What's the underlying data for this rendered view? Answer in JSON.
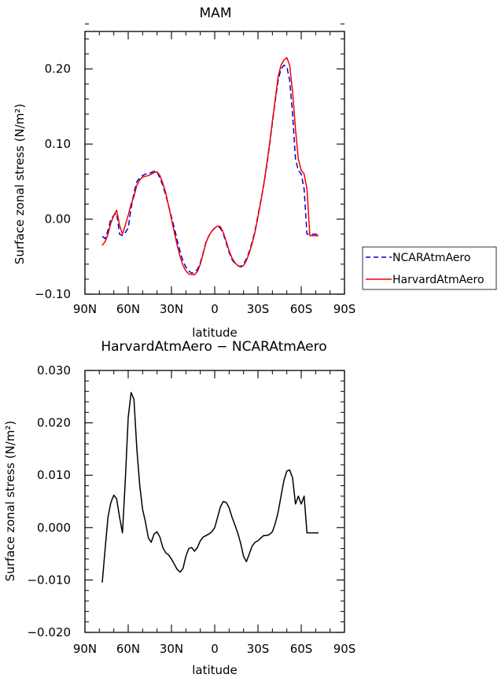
{
  "chart_data": [
    {
      "type": "line",
      "title": "MAM",
      "xlabel": "latitude",
      "ylabel": "Surface zonal stress (N/m²)",
      "xlim": [
        90,
        -90
      ],
      "ylim": [
        -0.1,
        0.25
      ],
      "xticks": [
        {
          "value": 90,
          "label": "90N"
        },
        {
          "value": 60,
          "label": "60N"
        },
        {
          "value": 30,
          "label": "30N"
        },
        {
          "value": 0,
          "label": "0"
        },
        {
          "value": -30,
          "label": "30S"
        },
        {
          "value": -60,
          "label": "60S"
        },
        {
          "value": -90,
          "label": "90S"
        }
      ],
      "yticks": [
        {
          "value": -0.1,
          "label": "−0.10"
        },
        {
          "value": 0.0,
          "label": "0.00"
        },
        {
          "value": 0.1,
          "label": "0.10"
        },
        {
          "value": 0.2,
          "label": "0.20"
        }
      ],
      "legend": {
        "placement": "right-bottom",
        "entries": [
          "NCARAtmAero",
          "HarvardAtmAero"
        ]
      },
      "series": [
        {
          "name": "NCARAtmAero",
          "color": "#0000cc",
          "dash": true,
          "x": [
            78,
            76,
            74,
            72,
            70,
            68,
            66,
            64,
            62,
            60,
            58,
            56,
            54,
            52,
            50,
            48,
            46,
            44,
            42,
            40,
            38,
            36,
            34,
            32,
            30,
            28,
            26,
            24,
            22,
            20,
            18,
            16,
            14,
            12,
            10,
            8,
            6,
            4,
            2,
            0,
            -2,
            -4,
            -6,
            -8,
            -10,
            -12,
            -14,
            -16,
            -18,
            -20,
            -22,
            -24,
            -26,
            -28,
            -30,
            -32,
            -34,
            -36,
            -38,
            -40,
            -42,
            -44,
            -46,
            -48,
            -50,
            -52,
            -54,
            -56,
            -58,
            -60,
            -62,
            -64,
            -66,
            -68,
            -70,
            -72
          ],
          "y": [
            -0.023,
            -0.026,
            -0.015,
            0.0,
            0.005,
            0.008,
            -0.02,
            -0.022,
            -0.018,
            -0.012,
            0.015,
            0.035,
            0.05,
            0.055,
            0.058,
            0.06,
            0.061,
            0.062,
            0.064,
            0.063,
            0.055,
            0.045,
            0.032,
            0.018,
            0.003,
            -0.012,
            -0.028,
            -0.043,
            -0.056,
            -0.064,
            -0.069,
            -0.072,
            -0.071,
            -0.067,
            -0.058,
            -0.045,
            -0.03,
            -0.022,
            -0.016,
            -0.012,
            -0.01,
            -0.012,
            -0.02,
            -0.032,
            -0.044,
            -0.054,
            -0.059,
            -0.062,
            -0.063,
            -0.06,
            -0.053,
            -0.043,
            -0.03,
            -0.015,
            0.005,
            0.025,
            0.045,
            0.07,
            0.098,
            0.128,
            0.158,
            0.185,
            0.2,
            0.205,
            0.203,
            0.185,
            0.14,
            0.08,
            0.065,
            0.06,
            0.04,
            -0.02,
            -0.02,
            -0.02,
            -0.02,
            -0.02
          ]
        },
        {
          "name": "HarvardAtmAero",
          "color": "#ee0000",
          "dash": false,
          "x": [
            78,
            76,
            74,
            72,
            70,
            68,
            66,
            64,
            62,
            60,
            58,
            56,
            54,
            52,
            50,
            48,
            46,
            44,
            42,
            40,
            38,
            36,
            34,
            32,
            30,
            28,
            26,
            24,
            22,
            20,
            18,
            16,
            14,
            12,
            10,
            8,
            6,
            4,
            2,
            0,
            -2,
            -4,
            -6,
            -8,
            -10,
            -12,
            -14,
            -16,
            -18,
            -20,
            -22,
            -24,
            -26,
            -28,
            -30,
            -32,
            -34,
            -36,
            -38,
            -40,
            -42,
            -44,
            -46,
            -48,
            -50,
            -52,
            -54,
            -56,
            -58,
            -60,
            -62,
            -64,
            -66,
            -68,
            -70,
            -72
          ],
          "y": [
            -0.035,
            -0.03,
            -0.02,
            -0.005,
            0.005,
            0.012,
            -0.008,
            -0.02,
            -0.008,
            0.005,
            0.02,
            0.03,
            0.045,
            0.052,
            0.056,
            0.057,
            0.058,
            0.06,
            0.062,
            0.063,
            0.058,
            0.048,
            0.035,
            0.018,
            0.0,
            -0.018,
            -0.035,
            -0.05,
            -0.062,
            -0.069,
            -0.073,
            -0.074,
            -0.074,
            -0.07,
            -0.06,
            -0.046,
            -0.031,
            -0.022,
            -0.016,
            -0.012,
            -0.009,
            -0.01,
            -0.018,
            -0.03,
            -0.042,
            -0.052,
            -0.058,
            -0.062,
            -0.064,
            -0.062,
            -0.055,
            -0.045,
            -0.032,
            -0.017,
            0.003,
            0.024,
            0.046,
            0.072,
            0.1,
            0.13,
            0.16,
            0.19,
            0.205,
            0.212,
            0.215,
            0.205,
            0.17,
            0.12,
            0.08,
            0.065,
            0.06,
            0.04,
            -0.022,
            -0.022,
            -0.022,
            -0.022
          ]
        }
      ]
    },
    {
      "type": "line",
      "title": "HarvardAtmAero − NCARAtmAero",
      "xlabel": "latitude",
      "ylabel": "Surface zonal stress (N/m²)",
      "xlim": [
        90,
        -90
      ],
      "ylim": [
        -0.02,
        0.03
      ],
      "xticks": [
        {
          "value": 90,
          "label": "90N"
        },
        {
          "value": 60,
          "label": "60N"
        },
        {
          "value": 30,
          "label": "30N"
        },
        {
          "value": 0,
          "label": "0"
        },
        {
          "value": -30,
          "label": "30S"
        },
        {
          "value": -60,
          "label": "60S"
        },
        {
          "value": -90,
          "label": "90S"
        }
      ],
      "yticks": [
        {
          "value": -0.02,
          "label": "−0.020"
        },
        {
          "value": -0.01,
          "label": "−0.010"
        },
        {
          "value": 0.0,
          "label": "0.000"
        },
        {
          "value": 0.01,
          "label": "0.010"
        },
        {
          "value": 0.02,
          "label": "0.020"
        },
        {
          "value": 0.03,
          "label": "0.030"
        }
      ],
      "series": [
        {
          "color": "#000000",
          "dash": false,
          "x": [
            78,
            76,
            74,
            72,
            70,
            68,
            66,
            64,
            62,
            60,
            58,
            56,
            54,
            52,
            50,
            48,
            46,
            44,
            42,
            40,
            38,
            36,
            34,
            32,
            30,
            28,
            26,
            24,
            22,
            20,
            18,
            16,
            14,
            12,
            10,
            8,
            6,
            4,
            2,
            0,
            -2,
            -4,
            -6,
            -8,
            -10,
            -12,
            -14,
            -16,
            -18,
            -20,
            -22,
            -24,
            -26,
            -28,
            -30,
            -32,
            -34,
            -36,
            -38,
            -40,
            -42,
            -44,
            -46,
            -48,
            -50,
            -52,
            -54,
            -56,
            -58,
            -60,
            -62,
            -64,
            -66,
            -68,
            -70,
            -72
          ],
          "y": [
            -0.0105,
            -0.004,
            0.002,
            0.0048,
            0.0062,
            0.0055,
            0.002,
            -0.001,
            0.009,
            0.021,
            0.0258,
            0.0245,
            0.015,
            0.008,
            0.0035,
            0.001,
            -0.002,
            -0.0028,
            -0.0012,
            -0.0008,
            -0.0018,
            -0.0038,
            -0.0048,
            -0.0052,
            -0.006,
            -0.007,
            -0.008,
            -0.0085,
            -0.0078,
            -0.0055,
            -0.004,
            -0.0038,
            -0.0045,
            -0.0038,
            -0.0025,
            -0.0018,
            -0.0015,
            -0.0012,
            -0.0008,
            0.0,
            0.002,
            0.004,
            0.005,
            0.0048,
            0.0038,
            0.002,
            0.0005,
            -0.001,
            -0.003,
            -0.0055,
            -0.0065,
            -0.005,
            -0.0035,
            -0.0028,
            -0.0025,
            -0.002,
            -0.0015,
            -0.0015,
            -0.0013,
            -0.0008,
            0.0008,
            0.003,
            0.006,
            0.009,
            0.0108,
            0.011,
            0.0095,
            0.0045,
            0.006,
            0.0045,
            0.006,
            -0.001,
            -0.001,
            -0.001,
            -0.001,
            -0.001
          ]
        }
      ]
    }
  ]
}
